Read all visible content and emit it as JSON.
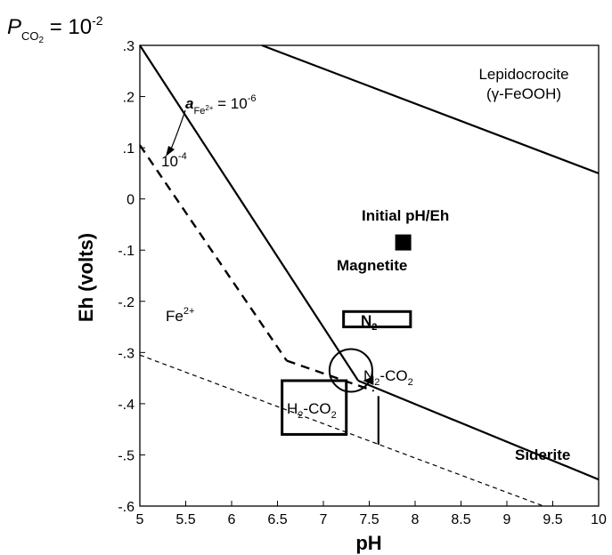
{
  "chart_data": {
    "type": "line",
    "xlabel": "pH",
    "ylabel": "Eh (volts)",
    "xlim": [
      5,
      10
    ],
    "ylim": [
      -0.6,
      0.3
    ],
    "x_ticks": [
      "5",
      "5.5",
      "6",
      "6.5",
      "7",
      "7.5",
      "8",
      "8.5",
      "9",
      "9.5",
      "10"
    ],
    "y_ticks": [
      ".3",
      ".2",
      ".1",
      "0",
      "-.1",
      "-.2",
      "-.3",
      "-.4",
      "-.5",
      "-.6"
    ],
    "header": {
      "P": "P",
      "sub": "CO",
      "sub2": "2",
      "eq": " = 10",
      "exp": "-2"
    },
    "boundaries": [
      {
        "id": "lepidocrocite-magnetite",
        "style": "solid",
        "points": [
          [
            6.33,
            0.3
          ],
          [
            10,
            0.05
          ]
        ]
      },
      {
        "id": "fe2-magnetite-1e-6",
        "style": "solid",
        "points": [
          [
            5.0,
            0.3
          ],
          [
            7.38,
            -0.355
          ]
        ]
      },
      {
        "id": "magnetite-siderite",
        "style": "solid",
        "points": [
          [
            7.38,
            -0.355
          ],
          [
            10,
            -0.548
          ]
        ]
      },
      {
        "id": "fe2-magnetite-1e-4",
        "style": "dashed",
        "points": [
          [
            5.0,
            0.105
          ],
          [
            6.6,
            -0.316
          ]
        ]
      },
      {
        "id": "fe2-siderite-1e-4",
        "style": "dashed",
        "points": [
          [
            6.6,
            -0.316
          ],
          [
            7.55,
            -0.375
          ]
        ]
      },
      {
        "id": "water-lower-limit",
        "style": "dotted",
        "points": [
          [
            5.0,
            -0.305
          ],
          [
            9.4,
            -0.6
          ]
        ]
      },
      {
        "id": "h2-co2-tail",
        "style": "solid",
        "points": [
          [
            7.6,
            -0.385
          ],
          [
            7.6,
            -0.48
          ]
        ]
      }
    ],
    "regions": {
      "lepidocrocite": {
        "name": "Lepidocrocite",
        "formula": "(γ-FeOOH)"
      },
      "magnetite": "Magnetite",
      "fe2": {
        "base": "Fe",
        "sup": "2+"
      },
      "siderite": "Siderite"
    },
    "activity": {
      "label_1e6": {
        "a": "a",
        "sub": "Fe",
        "sub_sup": "2+",
        "eq": " = 10",
        "exp": "-6"
      },
      "label_1e4": {
        "base": "10",
        "exp": "-4"
      }
    },
    "markers": {
      "initial": {
        "label": "Initial pH/Eh",
        "pH": 7.87,
        "Eh": -0.085
      },
      "n2_box": {
        "label": "N",
        "sub": "2",
        "pH_range": [
          7.22,
          7.95
        ],
        "Eh_range": [
          -0.22,
          -0.25
        ]
      },
      "h2co2_box": {
        "label_a": "H",
        "sub_a": "2",
        "label_b": "-CO",
        "sub_b": "2",
        "pH_range": [
          6.55,
          7.25
        ],
        "Eh_range": [
          -0.355,
          -0.46
        ]
      },
      "n2co2_circle": {
        "label_a": "N",
        "sub_a": "2",
        "label_b": "-CO",
        "sub_b": "2",
        "pH": 7.3,
        "Eh": -0.335
      }
    }
  }
}
